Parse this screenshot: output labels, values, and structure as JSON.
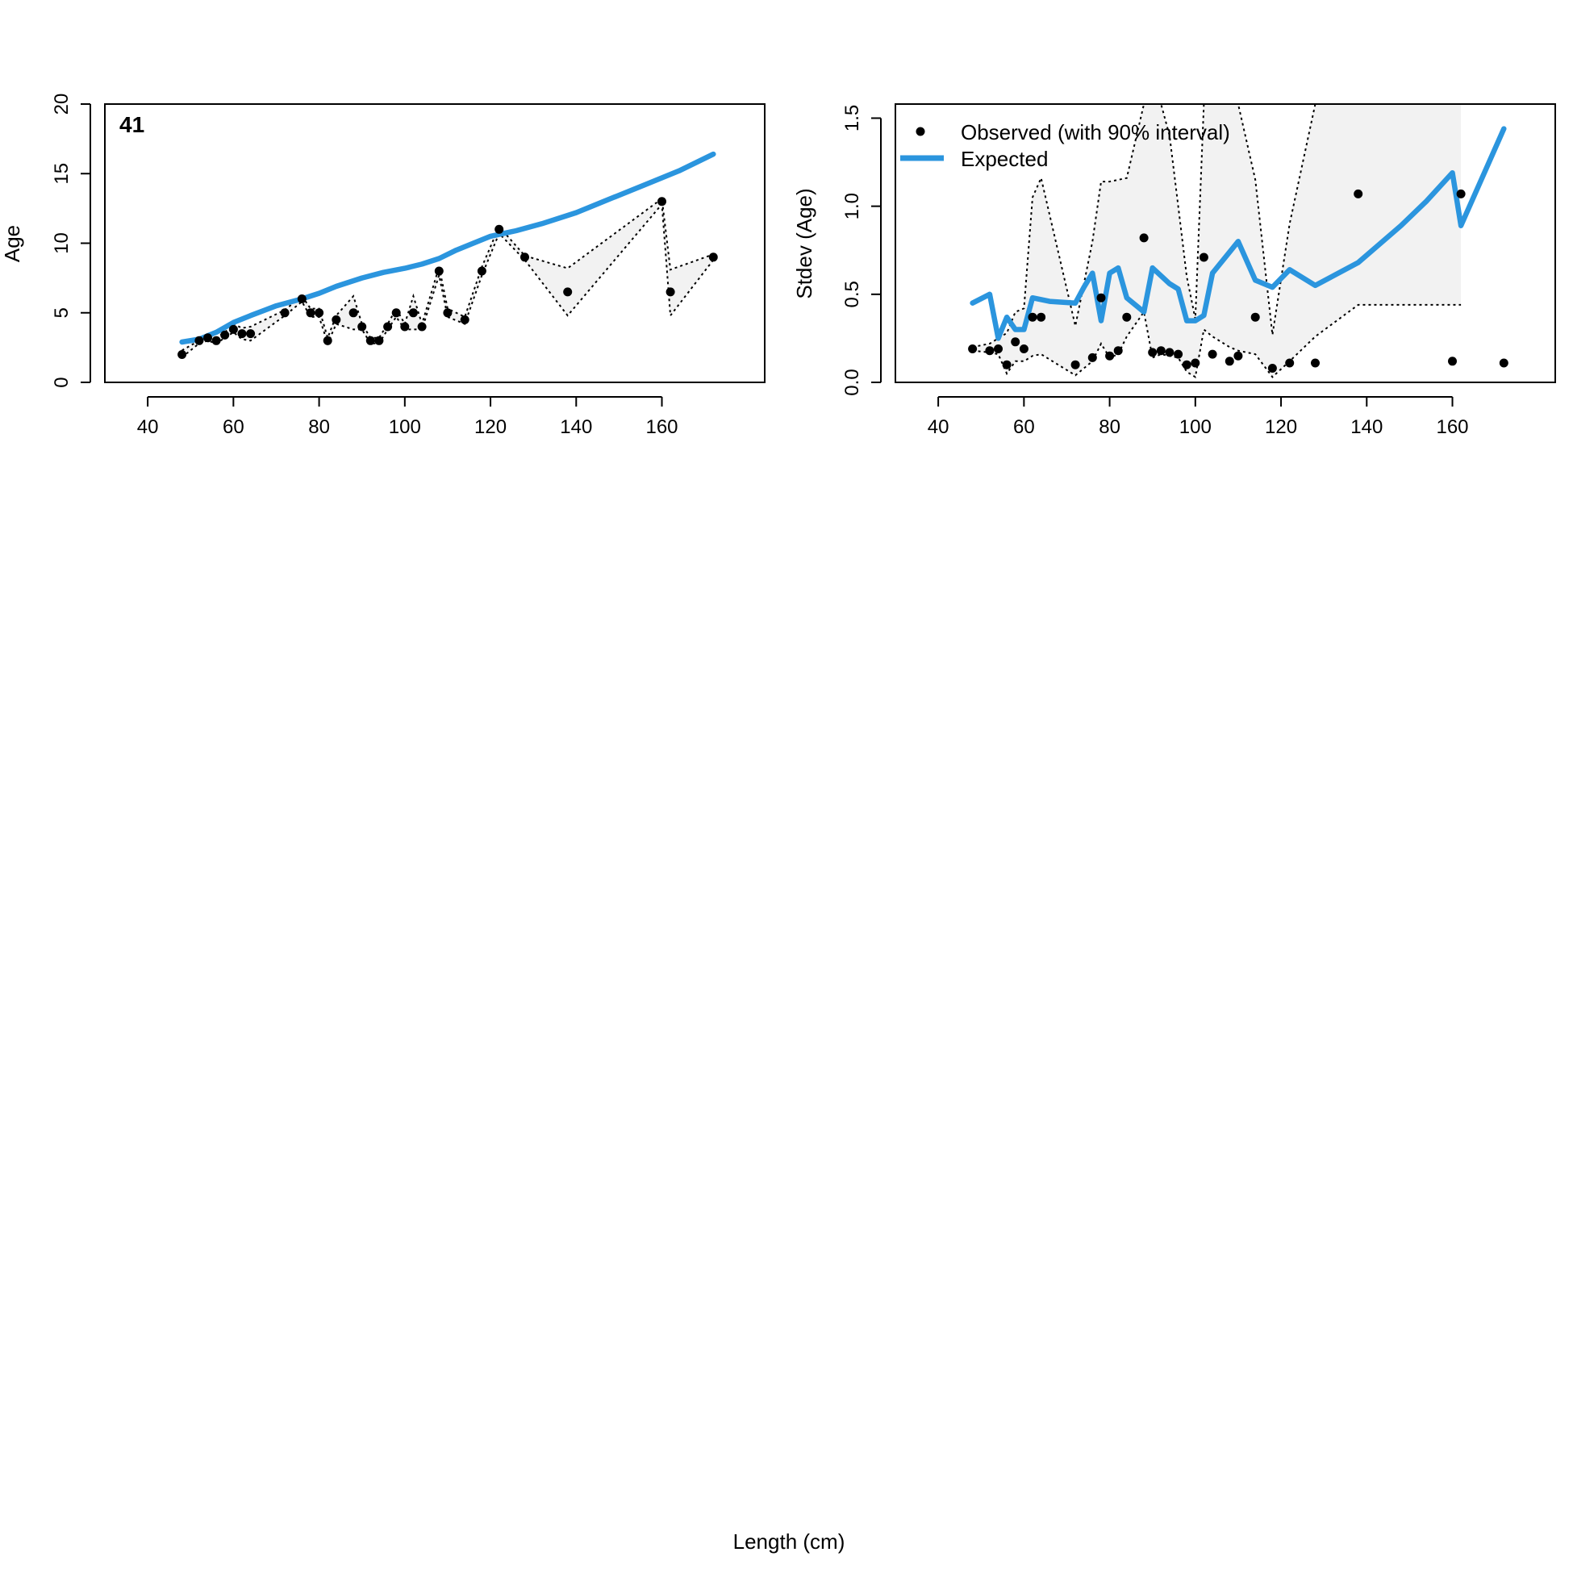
{
  "figure": {
    "xlabel": "Length (cm)"
  },
  "legend": {
    "observed_label": "Observed (with 90% interval)",
    "expected_label": "Expected"
  },
  "colors": {
    "expected": "#2b95de",
    "observed": "#000000",
    "interval_fill": "#f2f2f2",
    "interval_line": "#000000"
  },
  "chart_data": [
    {
      "type": "line",
      "panel_label": "41",
      "xlabel": "",
      "ylabel": "Age",
      "xlim": [
        30,
        184
      ],
      "ylim": [
        0,
        20
      ],
      "xticks": [
        40,
        60,
        80,
        100,
        120,
        140,
        160
      ],
      "yticks": [
        0,
        5,
        10,
        15,
        20
      ],
      "grid": false,
      "series": [
        {
          "name": "Observed (with 90% interval)",
          "kind": "points",
          "x": [
            48,
            52,
            54,
            56,
            58,
            60,
            62,
            64,
            72,
            76,
            78,
            80,
            82,
            84,
            88,
            90,
            92,
            94,
            96,
            98,
            100,
            102,
            104,
            108,
            110,
            114,
            118,
            122,
            128,
            138,
            160,
            162,
            172
          ],
          "y": [
            2.0,
            3.0,
            3.2,
            3.0,
            3.4,
            3.8,
            3.5,
            3.5,
            5.0,
            6.0,
            5.0,
            5.0,
            3.0,
            4.5,
            5.0,
            4.0,
            3.0,
            3.0,
            4.0,
            5.0,
            4.0,
            5.0,
            4.0,
            8.0,
            5.0,
            4.5,
            8.0,
            11.0,
            9.0,
            6.5,
            13.0,
            6.5,
            9.0
          ]
        },
        {
          "kind": "interval_upper",
          "x": [
            48,
            52,
            54,
            56,
            58,
            60,
            62,
            64,
            72,
            76,
            78,
            80,
            82,
            84,
            88,
            90,
            92,
            94,
            96,
            98,
            100,
            102,
            104,
            108,
            110,
            114,
            118,
            122,
            128,
            138,
            160,
            162,
            172
          ],
          "y": [
            2.3,
            3.0,
            3.5,
            3.2,
            3.6,
            4.2,
            3.9,
            4.0,
            5.2,
            6.2,
            5.3,
            5.3,
            3.2,
            4.8,
            6.2,
            4.2,
            3.2,
            3.2,
            4.2,
            5.3,
            4.2,
            6.2,
            4.2,
            8.3,
            5.3,
            4.7,
            8.3,
            11.2,
            9.1,
            8.2,
            13.2,
            8.1,
            9.2
          ]
        },
        {
          "kind": "interval_lower",
          "x": [
            48,
            52,
            54,
            56,
            58,
            60,
            62,
            64,
            72,
            76,
            78,
            80,
            82,
            84,
            88,
            90,
            92,
            94,
            96,
            98,
            100,
            102,
            104,
            108,
            110,
            114,
            118,
            122,
            128,
            138,
            160,
            162,
            172
          ],
          "y": [
            1.8,
            2.8,
            3.0,
            2.8,
            3.2,
            3.6,
            3.1,
            3.0,
            4.8,
            5.8,
            4.7,
            4.7,
            2.8,
            4.2,
            3.8,
            3.8,
            2.8,
            2.8,
            3.8,
            4.7,
            3.8,
            3.8,
            3.8,
            7.7,
            4.7,
            4.2,
            7.7,
            10.7,
            8.8,
            4.8,
            12.8,
            4.8,
            8.8
          ]
        },
        {
          "name": "Expected",
          "kind": "line",
          "x": [
            48,
            52,
            56,
            60,
            64,
            70,
            76,
            80,
            84,
            90,
            95,
            100,
            104,
            108,
            112,
            116,
            120,
            126,
            132,
            140,
            148,
            156,
            164,
            172
          ],
          "y": [
            2.9,
            3.1,
            3.6,
            4.3,
            4.8,
            5.5,
            6.0,
            6.4,
            6.9,
            7.5,
            7.9,
            8.2,
            8.5,
            8.9,
            9.5,
            10.0,
            10.5,
            10.9,
            11.4,
            12.2,
            13.2,
            14.2,
            15.2,
            16.4
          ]
        }
      ]
    },
    {
      "type": "line",
      "xlabel": "",
      "ylabel": "Stdev (Age)",
      "xlim": [
        30,
        184
      ],
      "ylim": [
        0,
        1.58
      ],
      "xticks": [
        40,
        60,
        80,
        100,
        120,
        140,
        160
      ],
      "yticks": [
        0.0,
        0.5,
        1.0,
        1.5
      ],
      "ytick_labels": [
        "0.0",
        "0.5",
        "1.0",
        "1.5"
      ],
      "grid": false,
      "legend_position": "top-left",
      "series": [
        {
          "name": "Observed (with 90% interval)",
          "kind": "points",
          "x": [
            48,
            52,
            54,
            56,
            58,
            60,
            62,
            64,
            72,
            76,
            78,
            80,
            82,
            84,
            88,
            90,
            92,
            94,
            96,
            98,
            100,
            102,
            104,
            108,
            110,
            114,
            118,
            122,
            128,
            138,
            160,
            162,
            172
          ],
          "y": [
            0.19,
            0.18,
            0.19,
            0.1,
            0.23,
            0.19,
            0.37,
            0.37,
            0.1,
            0.14,
            0.48,
            0.15,
            0.18,
            0.37,
            0.82,
            0.17,
            0.18,
            0.17,
            0.16,
            0.1,
            0.11,
            0.71,
            0.16,
            0.12,
            0.15,
            0.37,
            0.08,
            0.11,
            0.11,
            1.07,
            0.12,
            1.07,
            0.11
          ]
        },
        {
          "kind": "interval_upper",
          "x": [
            48,
            52,
            54,
            56,
            58,
            60,
            62,
            64,
            72,
            76,
            78,
            80,
            82,
            84,
            88,
            90,
            92,
            94,
            96,
            98,
            100,
            102,
            104,
            108,
            110,
            114,
            118,
            122,
            128,
            138,
            160,
            162
          ],
          "y": [
            0.2,
            0.22,
            0.25,
            0.28,
            0.4,
            0.42,
            1.05,
            1.16,
            0.32,
            0.8,
            1.14,
            1.14,
            1.15,
            1.16,
            1.58,
            1.58,
            1.58,
            1.4,
            1.0,
            0.6,
            0.36,
            1.58,
            1.58,
            1.58,
            1.58,
            1.15,
            0.27,
            0.9,
            1.58,
            1.58,
            1.58,
            1.58
          ]
        },
        {
          "kind": "interval_lower",
          "x": [
            48,
            52,
            54,
            56,
            58,
            60,
            62,
            64,
            72,
            76,
            78,
            80,
            82,
            84,
            88,
            90,
            92,
            94,
            96,
            98,
            100,
            102,
            104,
            108,
            110,
            114,
            118,
            122,
            128,
            138,
            160,
            162
          ],
          "y": [
            0.18,
            0.17,
            0.16,
            0.05,
            0.12,
            0.12,
            0.15,
            0.16,
            0.04,
            0.12,
            0.22,
            0.14,
            0.16,
            0.26,
            0.4,
            0.14,
            0.16,
            0.15,
            0.14,
            0.06,
            0.03,
            0.3,
            0.26,
            0.2,
            0.18,
            0.16,
            0.03,
            0.12,
            0.26,
            0.44,
            0.44,
            0.44
          ]
        },
        {
          "name": "Expected",
          "kind": "line",
          "x": [
            48,
            52,
            54,
            56,
            58,
            60,
            62,
            66,
            72,
            74,
            76,
            78,
            80,
            82,
            84,
            88,
            90,
            94,
            96,
            98,
            100,
            102,
            104,
            108,
            110,
            114,
            118,
            122,
            128,
            138,
            148,
            154,
            160,
            162,
            172
          ],
          "y": [
            0.45,
            0.5,
            0.25,
            0.37,
            0.3,
            0.3,
            0.48,
            0.46,
            0.45,
            0.54,
            0.62,
            0.35,
            0.62,
            0.65,
            0.48,
            0.4,
            0.65,
            0.56,
            0.53,
            0.35,
            0.35,
            0.38,
            0.62,
            0.74,
            0.8,
            0.58,
            0.54,
            0.64,
            0.55,
            0.68,
            0.89,
            1.03,
            1.19,
            0.89,
            1.44
          ]
        }
      ]
    }
  ]
}
